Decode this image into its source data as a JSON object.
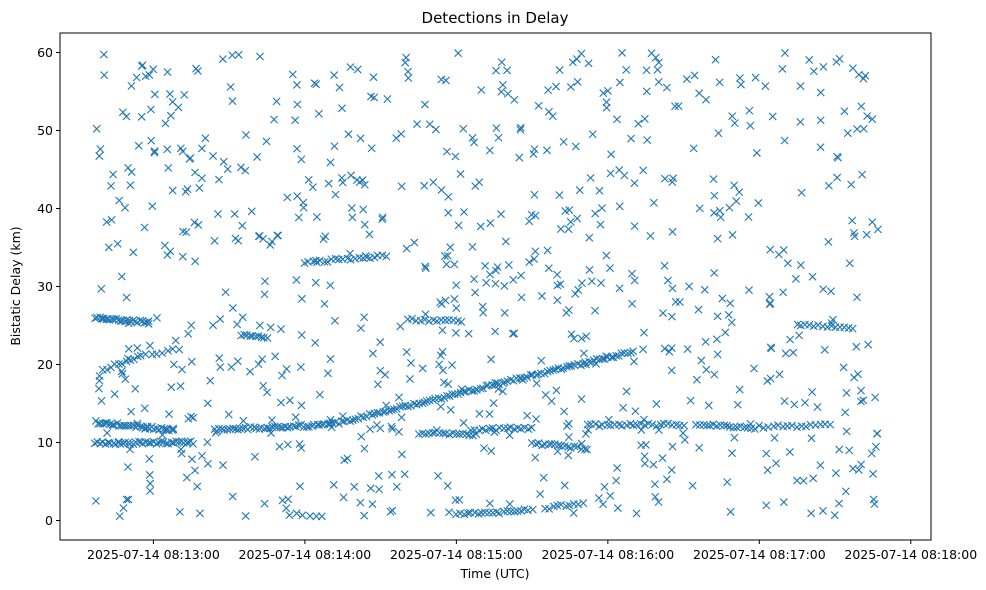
{
  "chart_data": {
    "type": "scatter",
    "title": "Detections in Delay",
    "xlabel": "Time (UTC)",
    "ylabel": "Bistatic Delay (km)",
    "marker": "x",
    "color": "#1f77b4",
    "grid": false,
    "xlim_seconds": [
      -37,
      308
    ],
    "x_origin": "2025-07-14 08:13:00",
    "ylim": [
      -2.5,
      62.5
    ],
    "x_ticks": [
      {
        "t": 0,
        "label": "2025-07-14 08:13:00"
      },
      {
        "t": 60,
        "label": "2025-07-14 08:14:00"
      },
      {
        "t": 120,
        "label": "2025-07-14 08:15:00"
      },
      {
        "t": 180,
        "label": "2025-07-14 08:16:00"
      },
      {
        "t": 240,
        "label": "2025-07-14 08:17:00"
      },
      {
        "t": 300,
        "label": "2025-07-14 08:18:00"
      }
    ],
    "y_ticks": [
      {
        "v": 0,
        "label": "0"
      },
      {
        "v": 10,
        "label": "10"
      },
      {
        "v": 20,
        "label": "20"
      },
      {
        "v": 30,
        "label": "30"
      },
      {
        "v": 40,
        "label": "40"
      },
      {
        "v": 50,
        "label": "50"
      },
      {
        "v": 60,
        "label": "60"
      }
    ],
    "tracks": [
      {
        "name": "track-1",
        "t_start": -23,
        "t_end": -2,
        "y_start": 26.0,
        "y_end": 25.4,
        "count": 26
      },
      {
        "name": "track-2",
        "t_start": -23,
        "t_end": 8,
        "y_start": 12.6,
        "y_end": 11.6,
        "count": 34
      },
      {
        "name": "track-3",
        "t_start": -23,
        "t_end": 16,
        "y_start": 9.9,
        "y_end": 10.0,
        "count": 40
      },
      {
        "name": "track-4",
        "t_start": -20,
        "t_end": -6,
        "y_start": 19.3,
        "y_end": 21.0,
        "count": 10
      },
      {
        "name": "track-5",
        "t_start": -5,
        "t_end": 10,
        "y_start": 21.0,
        "y_end": 22.0,
        "count": 8
      },
      {
        "name": "track-6",
        "t_start": 24,
        "t_end": 70,
        "y_start": 11.6,
        "y_end": 12.3,
        "count": 45
      },
      {
        "name": "track-7",
        "t_start": 70,
        "t_end": 190,
        "y_start": 12.3,
        "y_end": 21.7,
        "count": 110
      },
      {
        "name": "track-8",
        "t_start": 35,
        "t_end": 45,
        "y_start": 23.8,
        "y_end": 23.3,
        "count": 10
      },
      {
        "name": "track-9",
        "t_start": 60,
        "t_end": 92,
        "y_start": 33.0,
        "y_end": 34.0,
        "count": 22
      },
      {
        "name": "track-10",
        "t_start": 101,
        "t_end": 122,
        "y_start": 25.8,
        "y_end": 25.6,
        "count": 14
      },
      {
        "name": "track-11",
        "t_start": 105,
        "t_end": 128,
        "y_start": 11.2,
        "y_end": 11.0,
        "count": 18
      },
      {
        "name": "track-12",
        "t_start": 126,
        "t_end": 150,
        "y_start": 11.6,
        "y_end": 11.9,
        "count": 18
      },
      {
        "name": "track-13",
        "t_start": 120,
        "t_end": 150,
        "y_start": 0.8,
        "y_end": 1.3,
        "count": 22
      },
      {
        "name": "track-14",
        "t_start": 155,
        "t_end": 170,
        "y_start": 1.5,
        "y_end": 2.3,
        "count": 10
      },
      {
        "name": "track-15",
        "t_start": 150,
        "t_end": 172,
        "y_start": 9.9,
        "y_end": 9.2,
        "count": 18
      },
      {
        "name": "track-16",
        "t_start": 172,
        "t_end": 210,
        "y_start": 12.2,
        "y_end": 12.3,
        "count": 26
      },
      {
        "name": "track-17",
        "t_start": 215,
        "t_end": 238,
        "y_start": 12.3,
        "y_end": 11.8,
        "count": 18
      },
      {
        "name": "track-18",
        "t_start": 240,
        "t_end": 268,
        "y_start": 12.0,
        "y_end": 12.2,
        "count": 16
      },
      {
        "name": "track-19",
        "t_start": 255,
        "t_end": 277,
        "y_start": 25.2,
        "y_end": 24.7,
        "count": 14
      },
      {
        "name": "track-20",
        "t_start": 54,
        "t_end": 67,
        "y_start": 0.8,
        "y_end": 0.6,
        "count": 6
      }
    ],
    "clutter": {
      "t_range": [
        -23,
        288
      ],
      "y_range": [
        0.5,
        60
      ],
      "count": 780,
      "seed": 20250714
    }
  }
}
